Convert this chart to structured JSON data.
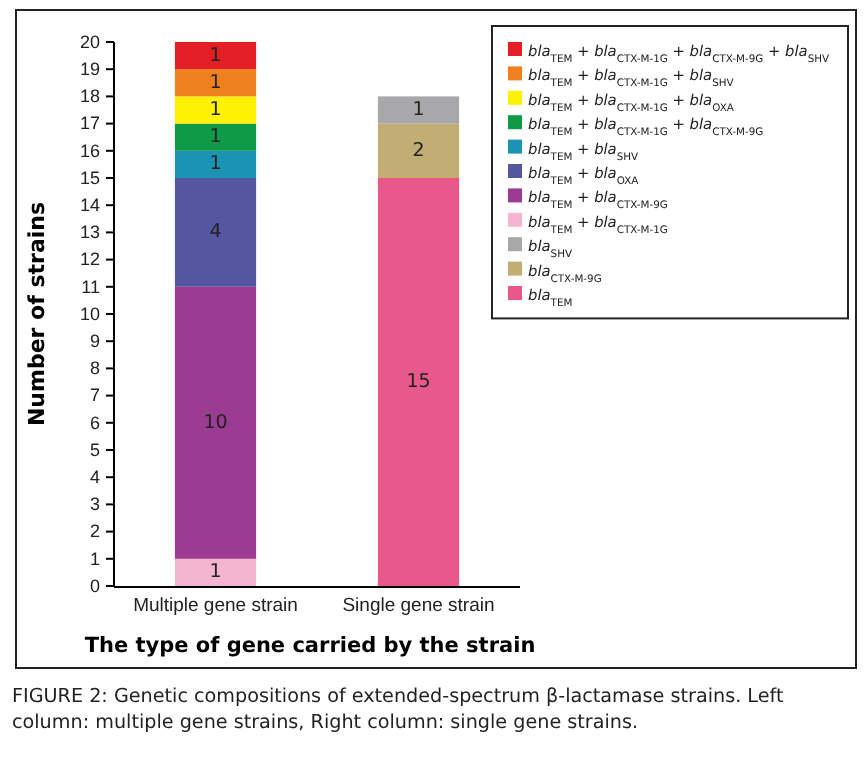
{
  "chart_data": {
    "type": "bar",
    "stacked": true,
    "categories": [
      "Multiple gene strain",
      "Single gene strain"
    ],
    "series": [
      {
        "name": "bla$_{TEM}$",
        "color": "#e8588a",
        "values": [
          null,
          15
        ]
      },
      {
        "name": "bla$_{CTX-M-9G}$",
        "color": "#c2ad72",
        "values": [
          null,
          2
        ]
      },
      {
        "name": "bla$_{SHV}$",
        "color": "#a8a8aa",
        "values": [
          null,
          1
        ]
      },
      {
        "name": "bla$_{TEM}$ + bla$_{CTX-M-1G}$",
        "color": "#f4b5d3",
        "values": [
          1,
          null
        ]
      },
      {
        "name": "bla$_{TEM}$ + bla$_{CTX-M-9G}$",
        "color": "#9c3b92",
        "values": [
          10,
          null
        ]
      },
      {
        "name": "bla$_{TEM}$ + bla$_{OXA}$",
        "color": "#5456a0",
        "values": [
          4,
          null
        ]
      },
      {
        "name": "bla$_{TEM}$ + bla$_{SHV}$",
        "color": "#1b93b5",
        "values": [
          1,
          null
        ]
      },
      {
        "name": "bla$_{TEM}$ + bla$_{CTX-M-1G}$ + bla$_{CTX-M-9G}$",
        "color": "#0f9a48",
        "values": [
          1,
          null
        ]
      },
      {
        "name": "bla$_{TEM}$ + bla$_{CTX-M-1G}$ + bla$_{OXA}$",
        "color": "#fff200",
        "values": [
          1,
          null
        ]
      },
      {
        "name": "bla$_{TEM}$ + bla$_{CTX-M-1G}$ + bla$_{SHV}$",
        "color": "#f07f1e",
        "values": [
          1,
          null
        ]
      },
      {
        "name": "bla$_{TEM}$ + bla$_{CTX-M-1G}$ + bla$_{CTX-M-9G}$ + bla$_{SHV}$",
        "color": "#e31e24",
        "values": [
          1,
          null
        ]
      }
    ],
    "ylim": [
      0,
      20
    ],
    "yticks": [
      0,
      1,
      2,
      3,
      4,
      5,
      6,
      7,
      8,
      9,
      10,
      11,
      12,
      13,
      14,
      15,
      16,
      17,
      18,
      19,
      20
    ],
    "ylabel": "Number of strains",
    "xlabel": "The type of gene carried by the strain",
    "data_labels": true,
    "legend": "top right",
    "annotations": [
      "FIGURE 2: Genetic compositions of extended-spectrum β-lactamase strains. Left column: multiple gene strains, Right column: single gene strains."
    ]
  }
}
